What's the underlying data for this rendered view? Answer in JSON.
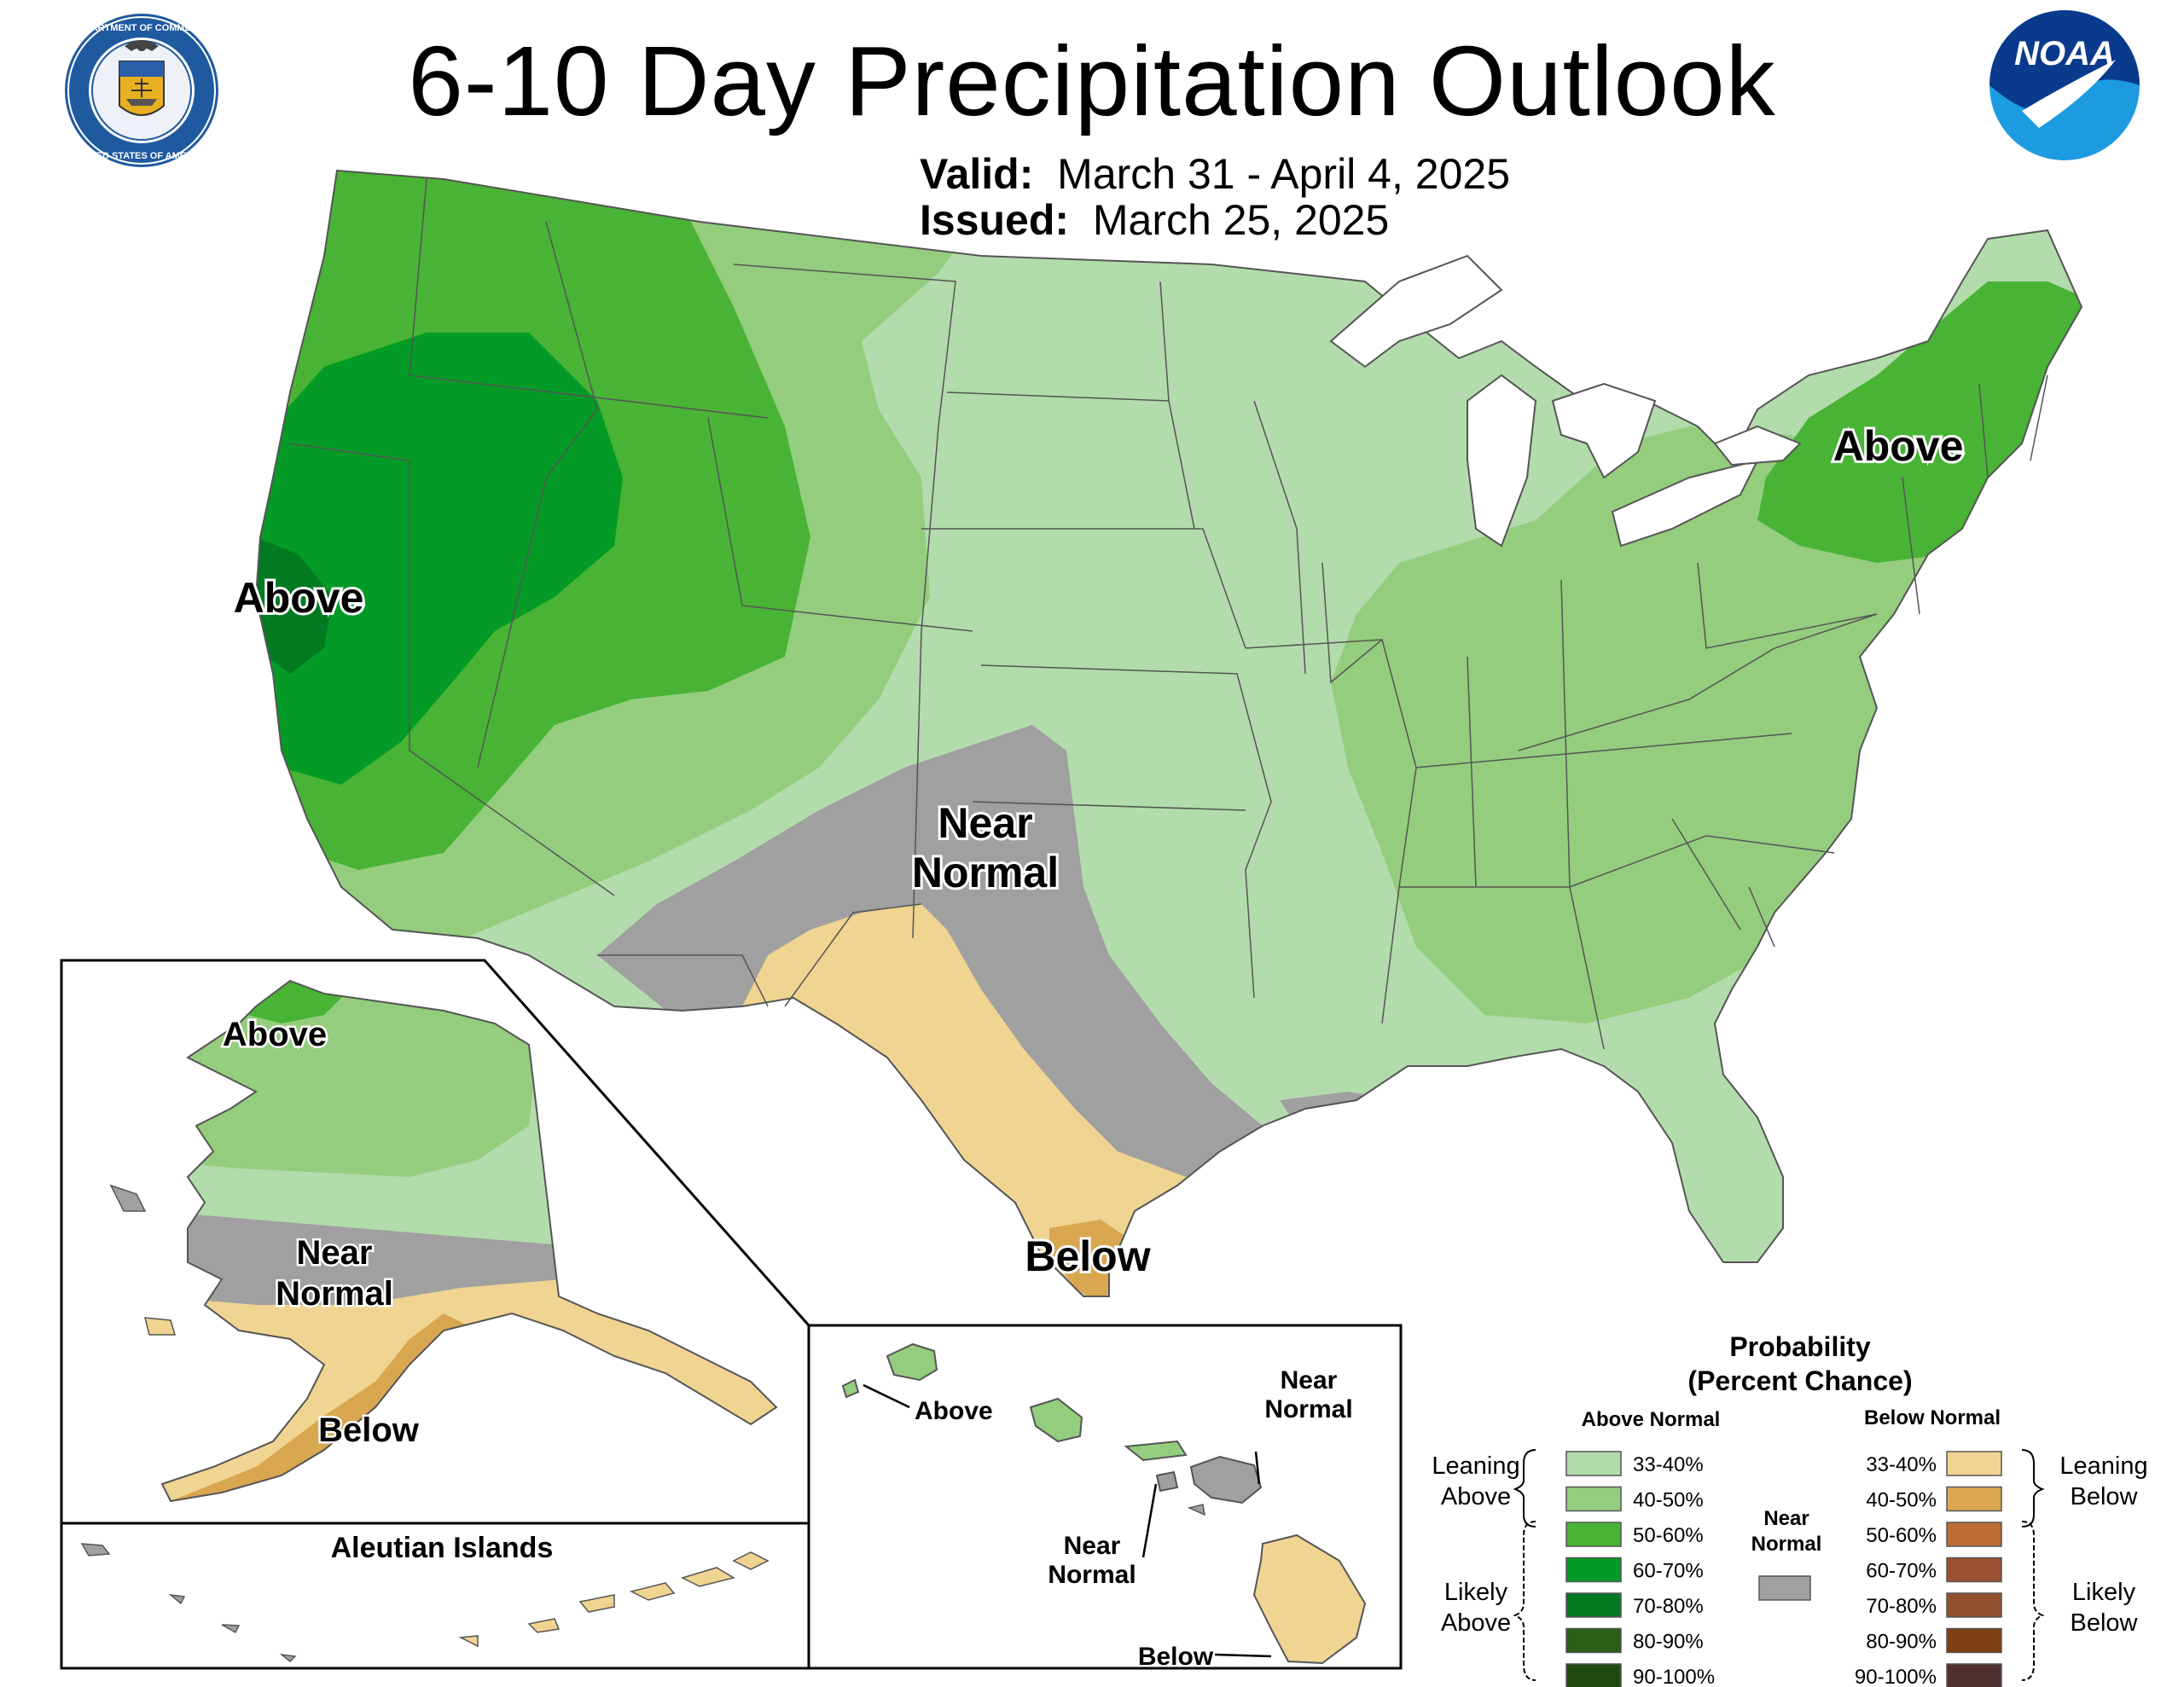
{
  "title": "6-10 Day Precipitation Outlook",
  "valid": {
    "label": "Valid:",
    "value": "March 31 - April 4, 2025"
  },
  "issued": {
    "label": "Issued:",
    "value": "March 25, 2025"
  },
  "logos": {
    "left": {
      "icon": "department-of-commerce-seal",
      "ring_text": "DEPARTMENT OF COMMERCE · UNITED STATES OF AMERICA"
    },
    "right": {
      "icon": "noaa-logo",
      "text": "NOAA"
    }
  },
  "map_labels": {
    "conus": {
      "above_west": "Above",
      "above_northeast": "Above",
      "near_normal_line1": "Near",
      "near_normal_line2": "Normal",
      "below_texas": "Below"
    },
    "alaska": {
      "above": "Above",
      "near_line1": "Near",
      "near_line2": "Normal",
      "below": "Below"
    },
    "aleutian_title": "Aleutian Islands",
    "hawaii": {
      "above": "Above",
      "near_right_line1": "Near",
      "near_right_line2": "Normal",
      "near_left_line1": "Near",
      "near_left_line2": "Normal",
      "below": "Below"
    }
  },
  "legend": {
    "title_line1": "Probability",
    "title_line2": "(Percent Chance)",
    "above_header": "Above Normal",
    "below_header": "Below Normal",
    "near_line1": "Near",
    "near_line2": "Normal",
    "leaning_above_line1": "Leaning",
    "leaning_above_line2": "Above",
    "likely_above_line1": "Likely",
    "likely_above_line2": "Above",
    "leaning_below_line1": "Leaning",
    "leaning_below_line2": "Below",
    "likely_below_line1": "Likely",
    "likely_below_line2": "Below",
    "above": [
      {
        "label": "33-40%",
        "color": "#b3dcac"
      },
      {
        "label": "40-50%",
        "color": "#94cd7e"
      },
      {
        "label": "50-60%",
        "color": "#48b335"
      },
      {
        "label": "60-70%",
        "color": "#039b25"
      },
      {
        "label": "70-80%",
        "color": "#027a22"
      },
      {
        "label": "80-90%",
        "color": "#2a5d16"
      },
      {
        "label": "90-100%",
        "color": "#224a10"
      }
    ],
    "below": [
      {
        "label": "33-40%",
        "color": "#f0d492"
      },
      {
        "label": "40-50%",
        "color": "#d8a750"
      },
      {
        "label": "50-60%",
        "color": "#bb6d33"
      },
      {
        "label": "60-70%",
        "color": "#9b5031"
      },
      {
        "label": "70-80%",
        "color": "#93522f"
      },
      {
        "label": "80-90%",
        "color": "#804013"
      },
      {
        "label": "90-100%",
        "color": "#4f2f2f"
      }
    ],
    "near_color": "#a0a0a0"
  }
}
